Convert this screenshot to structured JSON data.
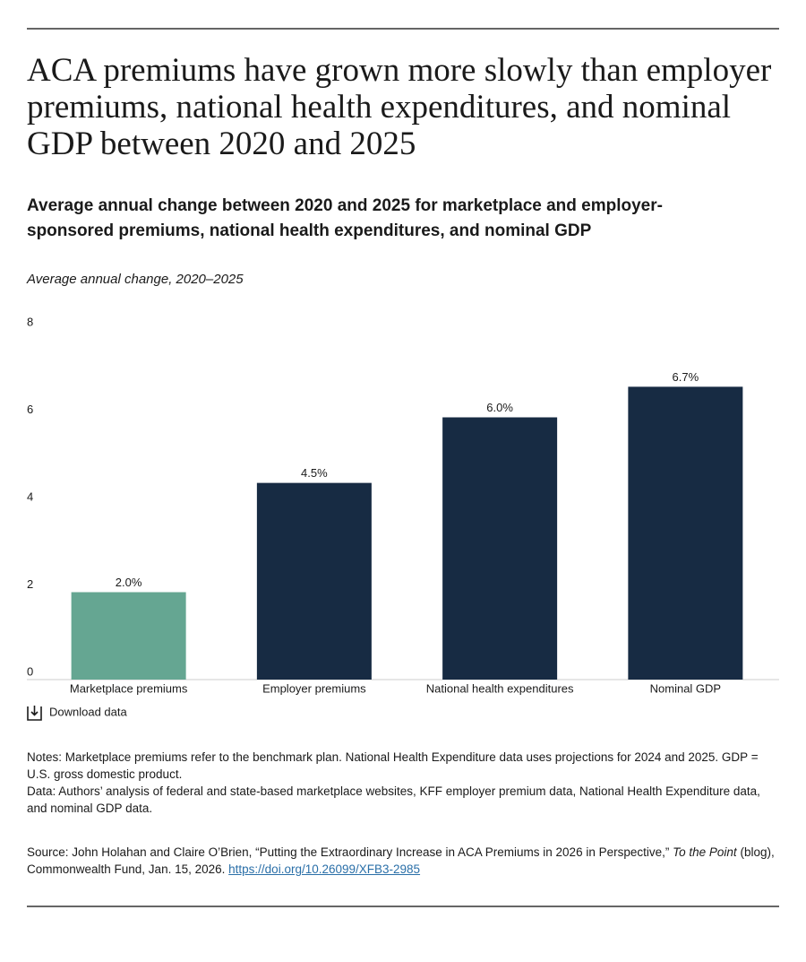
{
  "title": "ACA premiums have grown more slowly than employer premiums, national health expenditures, and nominal GDP between 2020 and 2025",
  "chart_data": {
    "type": "bar",
    "title": "Average annual change between 2020 and 2025 for marketplace and employer-sponsored premiums, national health expenditures, and nominal GDP",
    "y_label": "Average annual change, 2020–2025",
    "categories": [
      "Marketplace premiums",
      "Employer premiums",
      "National health expenditures",
      "Nominal GDP"
    ],
    "values": [
      2.0,
      4.5,
      6.0,
      6.7
    ],
    "value_labels": [
      "2.0%",
      "4.5%",
      "6.0%",
      "6.7%"
    ],
    "colors": [
      "#65a692",
      "#172b43",
      "#172b43",
      "#172b43"
    ],
    "ylim": [
      0,
      8
    ],
    "yticks": [
      0,
      2,
      4,
      6,
      8
    ],
    "grid": false
  },
  "download": "Download data",
  "notes": "Notes: Marketplace premiums refer to the benchmark plan. National Health Expenditure data uses projections for 2024 and 2025. GDP = U.S. gross domestic product.",
  "data_note": "Data: Authors’ analysis of federal and state-based marketplace websites, KFF employer premium data, National Health Expenditure data, and nominal GDP data.",
  "source": {
    "before": "Source: John Holahan and Claire O’Brien, “Putting the Extraordinary Increase in ACA Premiums in 2026 in Perspective,”",
    "italic": "To the Point",
    "after": "(blog), Commonwealth Fund, Jan. 15, 2026.",
    "link": "https://doi.org/10.26099/XFB3-2985"
  }
}
